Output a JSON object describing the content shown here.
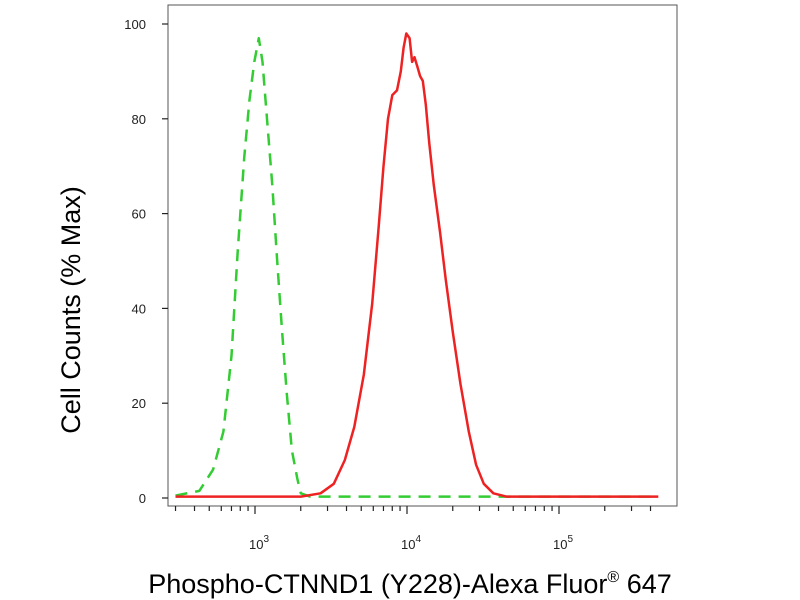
{
  "chart_data": {
    "type": "line",
    "xlabel": "Phospho-CTNND1 (Y228)-Alexa Fluor",
    "xlabel_superscript": "®",
    "xlabel_suffix": " 647",
    "ylabel": "Cell Counts (% Max)",
    "x_scale": "log",
    "xlim": [
      300,
      450000
    ],
    "ylim": [
      0,
      105
    ],
    "y_ticks": [
      0,
      20,
      40,
      60,
      80,
      100
    ],
    "x_tick_labels": [
      {
        "base": "10",
        "exp": "3",
        "value": 1000
      },
      {
        "base": "10",
        "exp": "4",
        "value": 10000
      },
      {
        "base": "10",
        "exp": "5",
        "value": 100000
      }
    ],
    "grid": false,
    "series": [
      {
        "color": "#33cc33",
        "style": "dashed",
        "points": [
          [
            300,
            0.5
          ],
          [
            430,
            1.5
          ],
          [
            530,
            6
          ],
          [
            620,
            14
          ],
          [
            700,
            30
          ],
          [
            770,
            52
          ],
          [
            850,
            72
          ],
          [
            920,
            84
          ],
          [
            990,
            92
          ],
          [
            1060,
            97
          ],
          [
            1120,
            92
          ],
          [
            1200,
            80
          ],
          [
            1300,
            66
          ],
          [
            1400,
            50
          ],
          [
            1500,
            36
          ],
          [
            1620,
            22
          ],
          [
            1750,
            10
          ],
          [
            1900,
            4
          ],
          [
            2000,
            1
          ],
          [
            2300,
            0.3
          ],
          [
            4500,
            0.3
          ],
          [
            10000,
            0.3
          ],
          [
            50000,
            0.3
          ],
          [
            450000,
            0.3
          ]
        ]
      },
      {
        "color": "#ee2222",
        "style": "solid",
        "points": [
          [
            300,
            0.3
          ],
          [
            2000,
            0.3
          ],
          [
            2700,
            1
          ],
          [
            3300,
            3
          ],
          [
            3900,
            8
          ],
          [
            4500,
            15
          ],
          [
            5200,
            26
          ],
          [
            5900,
            41
          ],
          [
            6500,
            57
          ],
          [
            7000,
            70
          ],
          [
            7500,
            80
          ],
          [
            8000,
            85
          ],
          [
            8600,
            86
          ],
          [
            9100,
            90
          ],
          [
            9500,
            95
          ],
          [
            9900,
            98
          ],
          [
            10400,
            97
          ],
          [
            10800,
            92
          ],
          [
            11200,
            93
          ],
          [
            11700,
            91
          ],
          [
            12200,
            89
          ],
          [
            12700,
            88
          ],
          [
            13300,
            83
          ],
          [
            14000,
            75
          ],
          [
            15000,
            66
          ],
          [
            16500,
            56
          ],
          [
            18000,
            46
          ],
          [
            20000,
            35
          ],
          [
            22500,
            24
          ],
          [
            25500,
            14
          ],
          [
            28500,
            7
          ],
          [
            32000,
            3
          ],
          [
            37000,
            1
          ],
          [
            45000,
            0.3
          ],
          [
            450000,
            0.3
          ]
        ]
      }
    ]
  }
}
